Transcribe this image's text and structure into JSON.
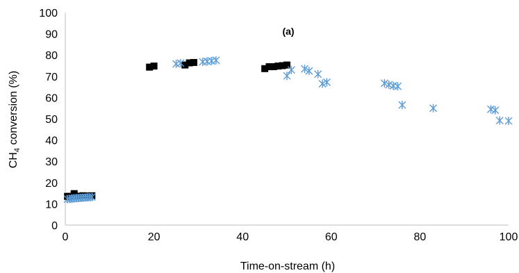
{
  "chart_data": {
    "type": "scatter",
    "title": "",
    "annotation": "(a)",
    "xlabel": "Time-on-stream (h)",
    "ylabel_main": "CH",
    "ylabel_sub": "4",
    "ylabel_rest": " conversion (%)",
    "xlim": [
      0,
      100
    ],
    "ylim": [
      0,
      100
    ],
    "xticks": [
      0,
      20,
      40,
      60,
      80,
      100
    ],
    "yticks": [
      0,
      10,
      20,
      30,
      40,
      50,
      60,
      70,
      80,
      90,
      100
    ],
    "grid": false,
    "legend": "none",
    "series": [
      {
        "marker": "square",
        "color": "#000000",
        "points": [
          [
            0.5,
            13.5
          ],
          [
            1,
            13.5
          ],
          [
            2,
            14.8
          ],
          [
            3,
            13.6
          ],
          [
            4,
            13.8
          ],
          [
            5,
            13.7
          ],
          [
            6,
            13.8
          ],
          [
            19,
            74.3
          ],
          [
            20,
            74.8
          ],
          [
            27,
            75.3
          ],
          [
            28,
            76.3
          ],
          [
            29,
            76.5
          ],
          [
            45,
            73.6
          ],
          [
            46,
            74.5
          ],
          [
            47,
            74.5
          ],
          [
            48,
            74.8
          ],
          [
            49,
            75.0
          ],
          [
            50,
            75.3
          ]
        ]
      },
      {
        "marker": "asterisk",
        "color": "#5b9bd5",
        "points": [
          [
            0.5,
            12.2
          ],
          [
            1,
            12.3
          ],
          [
            1.5,
            12.5
          ],
          [
            2,
            12.6
          ],
          [
            2.5,
            12.7
          ],
          [
            3,
            12.7
          ],
          [
            3.5,
            12.8
          ],
          [
            4,
            12.9
          ],
          [
            4.5,
            13.0
          ],
          [
            5,
            13.0
          ],
          [
            5.5,
            13.1
          ],
          [
            6,
            13.2
          ],
          [
            25,
            75.8
          ],
          [
            26,
            76.2
          ],
          [
            31,
            76.8
          ],
          [
            32,
            77.0
          ],
          [
            33,
            77.2
          ],
          [
            34,
            77.5
          ],
          [
            50,
            70.2
          ],
          [
            51,
            73.0
          ],
          [
            54,
            73.5
          ],
          [
            55,
            72.5
          ],
          [
            57,
            71.0
          ],
          [
            58,
            66.5
          ],
          [
            59,
            67.2
          ],
          [
            72,
            66.7
          ],
          [
            73,
            66.0
          ],
          [
            74,
            65.5
          ],
          [
            75,
            65.3
          ],
          [
            76,
            56.5
          ],
          [
            83,
            55.0
          ],
          [
            96,
            54.5
          ],
          [
            97,
            54.0
          ],
          [
            98,
            49.2
          ],
          [
            100,
            49.0
          ]
        ]
      }
    ]
  }
}
